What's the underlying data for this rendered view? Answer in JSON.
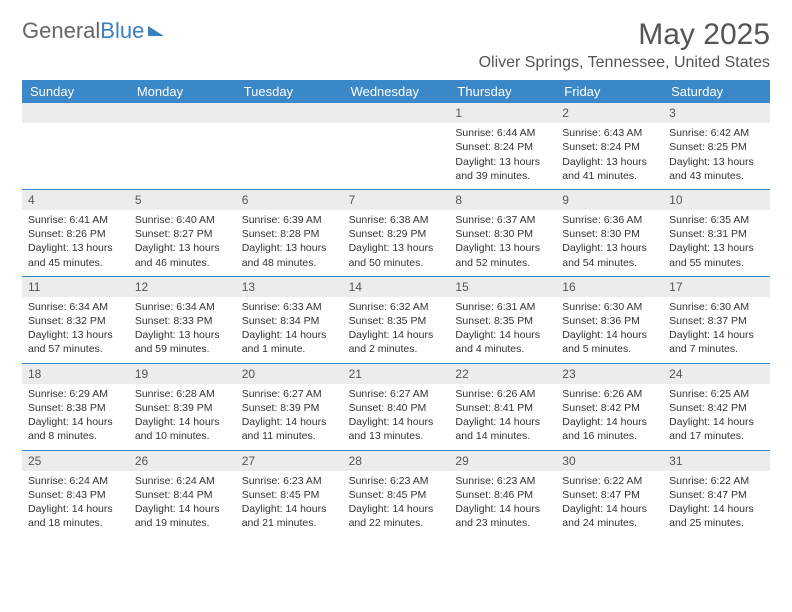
{
  "logo": {
    "part1": "General",
    "part2": "Blue"
  },
  "title": "May 2025",
  "location": "Oliver Springs, Tennessee, United States",
  "colors": {
    "header_bg": "#3a88c7",
    "header_text": "#ffffff",
    "daynum_bg": "#ececec",
    "rule": "#3a88c7",
    "text": "#333333"
  },
  "weekdays": [
    "Sunday",
    "Monday",
    "Tuesday",
    "Wednesday",
    "Thursday",
    "Friday",
    "Saturday"
  ],
  "weeks": [
    [
      null,
      null,
      null,
      null,
      {
        "n": "1",
        "sunrise": "Sunrise: 6:44 AM",
        "sunset": "Sunset: 8:24 PM",
        "daylight": "Daylight: 13 hours and 39 minutes."
      },
      {
        "n": "2",
        "sunrise": "Sunrise: 6:43 AM",
        "sunset": "Sunset: 8:24 PM",
        "daylight": "Daylight: 13 hours and 41 minutes."
      },
      {
        "n": "3",
        "sunrise": "Sunrise: 6:42 AM",
        "sunset": "Sunset: 8:25 PM",
        "daylight": "Daylight: 13 hours and 43 minutes."
      }
    ],
    [
      {
        "n": "4",
        "sunrise": "Sunrise: 6:41 AM",
        "sunset": "Sunset: 8:26 PM",
        "daylight": "Daylight: 13 hours and 45 minutes."
      },
      {
        "n": "5",
        "sunrise": "Sunrise: 6:40 AM",
        "sunset": "Sunset: 8:27 PM",
        "daylight": "Daylight: 13 hours and 46 minutes."
      },
      {
        "n": "6",
        "sunrise": "Sunrise: 6:39 AM",
        "sunset": "Sunset: 8:28 PM",
        "daylight": "Daylight: 13 hours and 48 minutes."
      },
      {
        "n": "7",
        "sunrise": "Sunrise: 6:38 AM",
        "sunset": "Sunset: 8:29 PM",
        "daylight": "Daylight: 13 hours and 50 minutes."
      },
      {
        "n": "8",
        "sunrise": "Sunrise: 6:37 AM",
        "sunset": "Sunset: 8:30 PM",
        "daylight": "Daylight: 13 hours and 52 minutes."
      },
      {
        "n": "9",
        "sunrise": "Sunrise: 6:36 AM",
        "sunset": "Sunset: 8:30 PM",
        "daylight": "Daylight: 13 hours and 54 minutes."
      },
      {
        "n": "10",
        "sunrise": "Sunrise: 6:35 AM",
        "sunset": "Sunset: 8:31 PM",
        "daylight": "Daylight: 13 hours and 55 minutes."
      }
    ],
    [
      {
        "n": "11",
        "sunrise": "Sunrise: 6:34 AM",
        "sunset": "Sunset: 8:32 PM",
        "daylight": "Daylight: 13 hours and 57 minutes."
      },
      {
        "n": "12",
        "sunrise": "Sunrise: 6:34 AM",
        "sunset": "Sunset: 8:33 PM",
        "daylight": "Daylight: 13 hours and 59 minutes."
      },
      {
        "n": "13",
        "sunrise": "Sunrise: 6:33 AM",
        "sunset": "Sunset: 8:34 PM",
        "daylight": "Daylight: 14 hours and 1 minute."
      },
      {
        "n": "14",
        "sunrise": "Sunrise: 6:32 AM",
        "sunset": "Sunset: 8:35 PM",
        "daylight": "Daylight: 14 hours and 2 minutes."
      },
      {
        "n": "15",
        "sunrise": "Sunrise: 6:31 AM",
        "sunset": "Sunset: 8:35 PM",
        "daylight": "Daylight: 14 hours and 4 minutes."
      },
      {
        "n": "16",
        "sunrise": "Sunrise: 6:30 AM",
        "sunset": "Sunset: 8:36 PM",
        "daylight": "Daylight: 14 hours and 5 minutes."
      },
      {
        "n": "17",
        "sunrise": "Sunrise: 6:30 AM",
        "sunset": "Sunset: 8:37 PM",
        "daylight": "Daylight: 14 hours and 7 minutes."
      }
    ],
    [
      {
        "n": "18",
        "sunrise": "Sunrise: 6:29 AM",
        "sunset": "Sunset: 8:38 PM",
        "daylight": "Daylight: 14 hours and 8 minutes."
      },
      {
        "n": "19",
        "sunrise": "Sunrise: 6:28 AM",
        "sunset": "Sunset: 8:39 PM",
        "daylight": "Daylight: 14 hours and 10 minutes."
      },
      {
        "n": "20",
        "sunrise": "Sunrise: 6:27 AM",
        "sunset": "Sunset: 8:39 PM",
        "daylight": "Daylight: 14 hours and 11 minutes."
      },
      {
        "n": "21",
        "sunrise": "Sunrise: 6:27 AM",
        "sunset": "Sunset: 8:40 PM",
        "daylight": "Daylight: 14 hours and 13 minutes."
      },
      {
        "n": "22",
        "sunrise": "Sunrise: 6:26 AM",
        "sunset": "Sunset: 8:41 PM",
        "daylight": "Daylight: 14 hours and 14 minutes."
      },
      {
        "n": "23",
        "sunrise": "Sunrise: 6:26 AM",
        "sunset": "Sunset: 8:42 PM",
        "daylight": "Daylight: 14 hours and 16 minutes."
      },
      {
        "n": "24",
        "sunrise": "Sunrise: 6:25 AM",
        "sunset": "Sunset: 8:42 PM",
        "daylight": "Daylight: 14 hours and 17 minutes."
      }
    ],
    [
      {
        "n": "25",
        "sunrise": "Sunrise: 6:24 AM",
        "sunset": "Sunset: 8:43 PM",
        "daylight": "Daylight: 14 hours and 18 minutes."
      },
      {
        "n": "26",
        "sunrise": "Sunrise: 6:24 AM",
        "sunset": "Sunset: 8:44 PM",
        "daylight": "Daylight: 14 hours and 19 minutes."
      },
      {
        "n": "27",
        "sunrise": "Sunrise: 6:23 AM",
        "sunset": "Sunset: 8:45 PM",
        "daylight": "Daylight: 14 hours and 21 minutes."
      },
      {
        "n": "28",
        "sunrise": "Sunrise: 6:23 AM",
        "sunset": "Sunset: 8:45 PM",
        "daylight": "Daylight: 14 hours and 22 minutes."
      },
      {
        "n": "29",
        "sunrise": "Sunrise: 6:23 AM",
        "sunset": "Sunset: 8:46 PM",
        "daylight": "Daylight: 14 hours and 23 minutes."
      },
      {
        "n": "30",
        "sunrise": "Sunrise: 6:22 AM",
        "sunset": "Sunset: 8:47 PM",
        "daylight": "Daylight: 14 hours and 24 minutes."
      },
      {
        "n": "31",
        "sunrise": "Sunrise: 6:22 AM",
        "sunset": "Sunset: 8:47 PM",
        "daylight": "Daylight: 14 hours and 25 minutes."
      }
    ]
  ]
}
